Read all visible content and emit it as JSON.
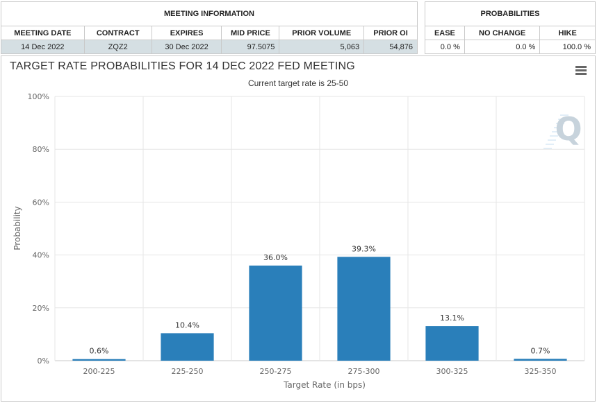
{
  "meeting_info": {
    "title": "MEETING INFORMATION",
    "headers": [
      "MEETING DATE",
      "CONTRACT",
      "EXPIRES",
      "MID PRICE",
      "PRIOR VOLUME",
      "PRIOR OI"
    ],
    "row": [
      "14 Dec 2022",
      "ZQZ2",
      "30 Dec 2022",
      "97.5075",
      "5,063",
      "54,876"
    ]
  },
  "probabilities": {
    "title": "PROBABILITIES",
    "headers": [
      "EASE",
      "NO CHANGE",
      "HIKE"
    ],
    "row": [
      "0.0 %",
      "0.0 %",
      "100.0 %"
    ]
  },
  "colors": {
    "bar": "#2a7fba",
    "grid": "#e6e6e6",
    "row_bg": "#d5dfe3",
    "logo": "#c7d3dc"
  },
  "icons": {
    "menu": "hamburger-menu-icon",
    "logo": "q-logo-icon"
  },
  "chart_data": {
    "type": "bar",
    "title": "TARGET RATE PROBABILITIES FOR 14 DEC 2022 FED MEETING",
    "subtitle": "Current target rate is 25-50",
    "xlabel": "Target Rate (in bps)",
    "ylabel": "Probability",
    "categories": [
      "200-225",
      "225-250",
      "250-275",
      "275-300",
      "300-325",
      "325-350"
    ],
    "values": [
      0.6,
      10.4,
      36.0,
      39.3,
      13.1,
      0.7
    ],
    "data_labels": [
      "0.6%",
      "10.4%",
      "36.0%",
      "39.3%",
      "13.1%",
      "0.7%"
    ],
    "yticks": [
      0,
      20,
      40,
      60,
      80,
      100
    ],
    "ytick_labels": [
      "0%",
      "20%",
      "40%",
      "60%",
      "80%",
      "100%"
    ],
    "ylim": [
      0,
      100
    ],
    "grid": true,
    "legend": "none"
  }
}
